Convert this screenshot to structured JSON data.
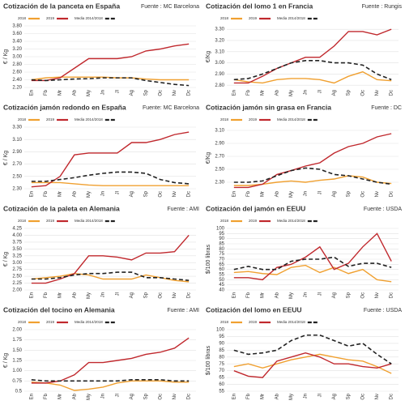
{
  "chart_data": [
    {
      "type": "line",
      "title": "Cotización de la panceta en España",
      "source": "Fuente : MC Barcelona",
      "ylabel": "€ / Kg",
      "grid": true,
      "categories": [
        "En",
        "Fb",
        "Mr",
        "Ab",
        "My",
        "Jn",
        "Jl",
        "Ag",
        "Sp",
        "Oc",
        "Nv",
        "Dc"
      ],
      "ylim": [
        2.2,
        3.8
      ],
      "yticks": [
        {
          "value": 2.2,
          "label": "2.20"
        },
        {
          "value": 2.4,
          "label": "2.40"
        },
        {
          "value": 2.6,
          "label": "2.60"
        },
        {
          "value": 2.8,
          "label": "2.80"
        },
        {
          "value": 3,
          "label": "3.00"
        },
        {
          "value": 3.2,
          "label": "3.20"
        },
        {
          "value": 3.4,
          "label": "3.40"
        },
        {
          "value": 3.6,
          "label": "3.60"
        },
        {
          "value": 3.8,
          "label": "3.80"
        }
      ],
      "series": [
        {
          "name": "2018",
          "color": "#f0a030",
          "dashed": false,
          "values": [
            2.4,
            2.45,
            2.47,
            2.47,
            2.47,
            2.47,
            2.45,
            2.45,
            2.42,
            2.4,
            2.4,
            2.4
          ]
        },
        {
          "name": "2019",
          "color": "#c0282d",
          "dashed": false,
          "values": [
            2.38,
            2.38,
            2.45,
            2.7,
            2.95,
            2.95,
            2.95,
            3.0,
            3.15,
            3.2,
            3.28,
            3.33
          ]
        },
        {
          "name": "Media 2014/2018",
          "color": "#222222",
          "dashed": true,
          "values": [
            2.4,
            2.38,
            2.4,
            2.42,
            2.43,
            2.45,
            2.45,
            2.45,
            2.38,
            2.33,
            2.28,
            2.25
          ]
        }
      ]
    },
    {
      "type": "line",
      "title": "Cotización jamón redondo en España",
      "source": "Fuente: MC Barcelona",
      "ylabel": "€ / Kg",
      "grid": true,
      "categories": [
        "En",
        "Fb",
        "Mr",
        "Ab",
        "My",
        "Jn",
        "Jl",
        "Ag",
        "Sp",
        "Oc",
        "Nv",
        "Dc"
      ],
      "ylim": [
        2.3,
        3.3
      ],
      "yticks": [
        {
          "value": 2.3,
          "label": "2.30"
        },
        {
          "value": 2.5,
          "label": "2.50"
        },
        {
          "value": 2.7,
          "label": "2.70"
        },
        {
          "value": 2.9,
          "label": "2.90"
        },
        {
          "value": 3.1,
          "label": "3.10"
        },
        {
          "value": 3.3,
          "label": "3.30"
        }
      ],
      "series": [
        {
          "name": "2018",
          "color": "#f0a030",
          "dashed": false,
          "values": [
            2.4,
            2.4,
            2.4,
            2.38,
            2.36,
            2.35,
            2.35,
            2.35,
            2.35,
            2.35,
            2.35,
            2.35
          ]
        },
        {
          "name": "2019",
          "color": "#c0282d",
          "dashed": false,
          "values": [
            2.33,
            2.35,
            2.5,
            2.85,
            2.88,
            2.88,
            2.88,
            3.05,
            3.05,
            3.1,
            3.18,
            3.22
          ]
        },
        {
          "name": "Media 2014/2018",
          "color": "#222222",
          "dashed": true,
          "values": [
            2.42,
            2.42,
            2.45,
            2.48,
            2.52,
            2.55,
            2.57,
            2.57,
            2.55,
            2.45,
            2.4,
            2.38
          ]
        }
      ]
    },
    {
      "type": "line",
      "title": "Cotización de la paleta en Alemania",
      "source": "Fuente : AMI",
      "ylabel": "€ / Kg",
      "grid": true,
      "categories": [
        "En",
        "Fb",
        "Mr",
        "Ab",
        "My",
        "Jn",
        "Jl",
        "Ag",
        "Sp",
        "Oc",
        "Nv",
        "Dc"
      ],
      "ylim": [
        2,
        4.25
      ],
      "yticks": [
        {
          "value": 2,
          "label": "2.00"
        },
        2.25,
        {
          "value": 2.5,
          "label": "2.50"
        },
        2.75,
        {
          "value": 3,
          "label": "3.00"
        },
        3.25,
        {
          "value": 3.5,
          "label": "3.50"
        },
        3.75,
        {
          "value": 4,
          "label": "4.00"
        },
        4.25
      ],
      "series": [
        {
          "name": "2018",
          "color": "#f0a030",
          "dashed": false,
          "values": [
            2.4,
            2.45,
            2.5,
            2.6,
            2.55,
            2.4,
            2.4,
            2.4,
            2.55,
            2.45,
            2.35,
            2.3
          ]
        },
        {
          "name": "2019",
          "color": "#c0282d",
          "dashed": false,
          "values": [
            2.25,
            2.25,
            2.4,
            2.6,
            3.25,
            3.25,
            3.2,
            3.1,
            3.35,
            3.35,
            3.4,
            4.0
          ]
        },
        {
          "name": "Media 2014/2018",
          "color": "#222222",
          "dashed": true,
          "values": [
            2.4,
            2.4,
            2.45,
            2.55,
            2.6,
            2.6,
            2.65,
            2.65,
            2.45,
            2.45,
            2.4,
            2.35
          ]
        }
      ]
    },
    {
      "type": "line",
      "title": "Cotización del tocino en Alemania",
      "source": "Fuente : AMI",
      "ylabel": "€ / Kg",
      "grid": true,
      "categories": [
        "En",
        "Fb",
        "Mr",
        "Ab",
        "My",
        "Jn",
        "Jl",
        "Ag",
        "Sp",
        "Oc",
        "Nv",
        "Dc"
      ],
      "ylim": [
        0.5,
        2
      ],
      "yticks": [
        0.5,
        0.75,
        {
          "value": 1,
          "label": "1.00"
        },
        1.25,
        {
          "value": 1.5,
          "label": "1.50"
        },
        1.75,
        {
          "value": 2,
          "label": "2.00"
        }
      ],
      "series": [
        {
          "name": "2018",
          "color": "#f0a030",
          "dashed": false,
          "values": [
            0.72,
            0.7,
            0.65,
            0.52,
            0.55,
            0.6,
            0.7,
            0.75,
            0.75,
            0.75,
            0.72,
            0.72
          ]
        },
        {
          "name": "2019",
          "color": "#c0282d",
          "dashed": false,
          "values": [
            0.7,
            0.7,
            0.75,
            0.9,
            1.2,
            1.2,
            1.25,
            1.3,
            1.4,
            1.45,
            1.55,
            1.8
          ]
        },
        {
          "name": "Media 2014/2018",
          "color": "#222222",
          "dashed": true,
          "values": [
            0.78,
            0.75,
            0.75,
            0.75,
            0.75,
            0.75,
            0.75,
            0.78,
            0.78,
            0.78,
            0.75,
            0.75
          ]
        }
      ]
    },
    {
      "type": "line",
      "title": "Cotización del lomo 1 en Francia",
      "source": "Fuente : Rungis",
      "ylabel": "€/Kg",
      "grid": true,
      "categories": [
        "En",
        "Fb",
        "Mr",
        "Ab",
        "My",
        "Jn",
        "Jl",
        "Ag",
        "Sp",
        "Oc",
        "Nv",
        "Dc"
      ],
      "ylim": [
        2.78,
        3.33
      ],
      "yticks": [
        {
          "value": 2.8,
          "label": "2.80"
        },
        {
          "value": 2.9,
          "label": "2.90"
        },
        {
          "value": 3,
          "label": "3.00"
        },
        {
          "value": 3.1,
          "label": "3.10"
        },
        {
          "value": 3.2,
          "label": "3.20"
        },
        {
          "value": 3.3,
          "label": "3.30"
        }
      ],
      "series": [
        {
          "name": "2018",
          "color": "#f0a030",
          "dashed": false,
          "values": [
            2.85,
            2.83,
            2.82,
            2.85,
            2.86,
            2.86,
            2.85,
            2.82,
            2.88,
            2.92,
            2.85,
            2.84
          ]
        },
        {
          "name": "2019",
          "color": "#c0282d",
          "dashed": false,
          "values": [
            2.82,
            2.82,
            2.88,
            2.95,
            3.0,
            3.05,
            3.05,
            3.15,
            3.28,
            3.28,
            3.25,
            3.3
          ]
        },
        {
          "name": "Media 2014/2018",
          "color": "#222222",
          "dashed": true,
          "values": [
            2.85,
            2.86,
            2.9,
            2.95,
            3.0,
            3.02,
            3.02,
            3.0,
            3.0,
            2.98,
            2.9,
            2.85
          ]
        }
      ]
    },
    {
      "type": "line",
      "title": "Cotización jamón sin grasa en Francia",
      "source": "Fuente : DC",
      "ylabel": "€/Kg",
      "grid": true,
      "categories": [
        "En",
        "Fb",
        "Mr",
        "Ab",
        "My",
        "Jn",
        "Jl",
        "Ag",
        "Sp",
        "Oc",
        "Nv",
        "Dc"
      ],
      "ylim": [
        2.2,
        3.15
      ],
      "yticks": [
        {
          "value": 2.3,
          "label": "2.30"
        },
        {
          "value": 2.5,
          "label": "2.50"
        },
        {
          "value": 2.7,
          "label": "2.70"
        },
        {
          "value": 2.9,
          "label": "2.90"
        },
        {
          "value": 3.1,
          "label": "3.10"
        }
      ],
      "series": [
        {
          "name": "2018",
          "color": "#f0a030",
          "dashed": false,
          "values": [
            2.25,
            2.25,
            2.27,
            2.3,
            2.32,
            2.3,
            2.33,
            2.35,
            2.4,
            2.38,
            2.3,
            2.28
          ]
        },
        {
          "name": "2019",
          "color": "#c0282d",
          "dashed": false,
          "values": [
            2.22,
            2.22,
            2.27,
            2.42,
            2.48,
            2.55,
            2.6,
            2.75,
            2.85,
            2.9,
            3.0,
            3.05
          ]
        },
        {
          "name": "Media 2014/2018",
          "color": "#222222",
          "dashed": true,
          "values": [
            2.3,
            2.3,
            2.32,
            2.4,
            2.48,
            2.52,
            2.5,
            2.42,
            2.4,
            2.35,
            2.3,
            2.27
          ]
        }
      ]
    },
    {
      "type": "line",
      "title": "Cotización del jamón en EEUU",
      "source": "Fuente : USDA",
      "ylabel": "$/100 libras",
      "grid": true,
      "categories": [
        "En",
        "Fb",
        "Mr",
        "Ab",
        "My",
        "Jn",
        "Jl",
        "Ag",
        "Sp",
        "Oc",
        "Nv",
        "Dc"
      ],
      "ylim": [
        40,
        100
      ],
      "yticks": [
        40,
        45,
        50,
        55,
        60,
        65,
        70,
        75,
        80,
        85,
        90,
        95,
        100
      ],
      "series": [
        {
          "name": "2018",
          "color": "#f0a030",
          "dashed": false,
          "values": [
            57,
            58,
            56,
            55,
            62,
            64,
            57,
            62,
            56,
            60,
            50,
            48
          ]
        },
        {
          "name": "2019",
          "color": "#c0282d",
          "dashed": false,
          "values": [
            52,
            52,
            50,
            62,
            65,
            72,
            82,
            60,
            66,
            82,
            95,
            68
          ]
        },
        {
          "name": "Media 2014/2018",
          "color": "#222222",
          "dashed": true,
          "values": [
            60,
            63,
            60,
            60,
            68,
            70,
            70,
            72,
            63,
            66,
            66,
            62
          ]
        }
      ]
    },
    {
      "type": "line",
      "title": "Cotización del lomo en EEUU",
      "source": "Fuente : USDA",
      "ylabel": "$/100 libras",
      "grid": true,
      "categories": [
        "En",
        "Fb",
        "Mr",
        "Ab",
        "My",
        "Jn",
        "Jl",
        "Ag",
        "Sp",
        "Oc",
        "Nv",
        "Dc"
      ],
      "ylim": [
        55,
        100
      ],
      "yticks": [
        55,
        60,
        65,
        70,
        75,
        80,
        85,
        90,
        95,
        100
      ],
      "series": [
        {
          "name": "2018",
          "color": "#f0a030",
          "dashed": false,
          "values": [
            73,
            75,
            72,
            75,
            78,
            80,
            82,
            80,
            78,
            77,
            73,
            68
          ]
        },
        {
          "name": "2019",
          "color": "#c0282d",
          "dashed": false,
          "values": [
            70,
            66,
            65,
            77,
            80,
            83,
            80,
            75,
            75,
            73,
            72,
            75
          ]
        },
        {
          "name": "Media 2014/2018",
          "color": "#222222",
          "dashed": true,
          "values": [
            85,
            82,
            83,
            85,
            92,
            96,
            96,
            92,
            88,
            90,
            82,
            75
          ]
        }
      ]
    }
  ]
}
